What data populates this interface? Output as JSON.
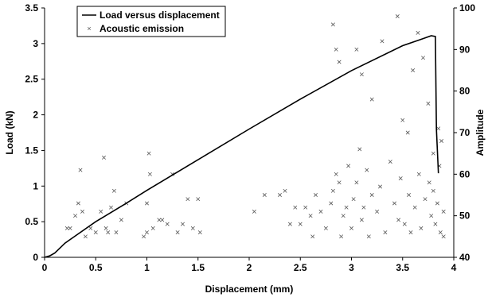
{
  "chart_data": {
    "type": "line+scatter",
    "xlabel": "Displacement (mm)",
    "ylabel_left": "Load (kN)",
    "ylabel_right": "Amplitude",
    "xlim": [
      0,
      4
    ],
    "ylim_left": [
      0,
      3.5
    ],
    "ylim_right": [
      40,
      100
    ],
    "x_ticks": [
      "0",
      "0.5",
      "1",
      "1.5",
      "2",
      "2.5",
      "3",
      "3.5",
      "4"
    ],
    "y_ticks_left": [
      "0",
      "0.5",
      "1",
      "1.5",
      "2",
      "2.5",
      "3",
      "3.5"
    ],
    "y_ticks_right": [
      "40",
      "50",
      "60",
      "70",
      "80",
      "90",
      "100"
    ],
    "grid": false,
    "legend_position": "top-left",
    "colors": {
      "line": "#000000",
      "markers": "#555555"
    },
    "series": [
      {
        "name": "Load versus displacement",
        "kind": "line",
        "axis": "left",
        "x": [
          0,
          0.05,
          0.1,
          0.15,
          0.2,
          0.3,
          0.5,
          0.8,
          1.0,
          1.5,
          2.0,
          2.5,
          3.0,
          3.5,
          3.7,
          3.78,
          3.82,
          3.83,
          3.85
        ],
        "y": [
          0,
          0.02,
          0.06,
          0.13,
          0.2,
          0.3,
          0.5,
          0.76,
          0.94,
          1.37,
          1.8,
          2.22,
          2.62,
          2.97,
          3.07,
          3.11,
          3.1,
          1.8,
          1.18
        ]
      },
      {
        "name": "Acoustic emission",
        "kind": "scatter",
        "axis": "right",
        "marker": "x",
        "points": [
          [
            0.22,
            47
          ],
          [
            0.25,
            47
          ],
          [
            0.3,
            50
          ],
          [
            0.33,
            53
          ],
          [
            0.35,
            61
          ],
          [
            0.37,
            51
          ],
          [
            0.4,
            45
          ],
          [
            0.45,
            47
          ],
          [
            0.5,
            46
          ],
          [
            0.55,
            51
          ],
          [
            0.58,
            64
          ],
          [
            0.6,
            47
          ],
          [
            0.62,
            46
          ],
          [
            0.65,
            52
          ],
          [
            0.68,
            56
          ],
          [
            0.7,
            46
          ],
          [
            0.75,
            49
          ],
          [
            0.8,
            53
          ],
          [
            0.97,
            45
          ],
          [
            1.0,
            46
          ],
          [
            1.0,
            53
          ],
          [
            1.02,
            65
          ],
          [
            1.03,
            60
          ],
          [
            1.06,
            47
          ],
          [
            1.12,
            49
          ],
          [
            1.15,
            49
          ],
          [
            1.2,
            48
          ],
          [
            1.25,
            60
          ],
          [
            1.3,
            46
          ],
          [
            1.35,
            48
          ],
          [
            1.4,
            54
          ],
          [
            1.45,
            47
          ],
          [
            1.5,
            54
          ],
          [
            1.52,
            46
          ],
          [
            2.05,
            51
          ],
          [
            2.15,
            55
          ],
          [
            2.3,
            55
          ],
          [
            2.35,
            56
          ],
          [
            2.4,
            48
          ],
          [
            2.45,
            52
          ],
          [
            2.5,
            48
          ],
          [
            2.55,
            52
          ],
          [
            2.6,
            50
          ],
          [
            2.62,
            45
          ],
          [
            2.65,
            55
          ],
          [
            2.7,
            51
          ],
          [
            2.75,
            47
          ],
          [
            2.8,
            53
          ],
          [
            2.82,
            56
          ],
          [
            2.85,
            60
          ],
          [
            2.88,
            58
          ],
          [
            2.9,
            45
          ],
          [
            2.92,
            50
          ],
          [
            2.95,
            52
          ],
          [
            2.97,
            62
          ],
          [
            3.0,
            47
          ],
          [
            3.02,
            54
          ],
          [
            3.05,
            58
          ],
          [
            3.08,
            66
          ],
          [
            3.1,
            49
          ],
          [
            3.12,
            52
          ],
          [
            3.15,
            61
          ],
          [
            3.17,
            45
          ],
          [
            3.2,
            55
          ],
          [
            2.82,
            96
          ],
          [
            2.85,
            90
          ],
          [
            2.88,
            87
          ],
          [
            3.05,
            90
          ],
          [
            3.1,
            84
          ],
          [
            3.2,
            78
          ],
          [
            3.3,
            92
          ],
          [
            3.45,
            98
          ],
          [
            3.5,
            73
          ],
          [
            3.55,
            70
          ],
          [
            3.6,
            85
          ],
          [
            3.65,
            94
          ],
          [
            3.7,
            88
          ],
          [
            3.75,
            77
          ],
          [
            3.8,
            65
          ],
          [
            3.85,
            71
          ],
          [
            3.9,
            45
          ],
          [
            3.25,
            51
          ],
          [
            3.28,
            57
          ],
          [
            3.33,
            46
          ],
          [
            3.38,
            63
          ],
          [
            3.42,
            53
          ],
          [
            3.46,
            49
          ],
          [
            3.48,
            59
          ],
          [
            3.52,
            48
          ],
          [
            3.56,
            55
          ],
          [
            3.58,
            46
          ],
          [
            3.62,
            52
          ],
          [
            3.66,
            60
          ],
          [
            3.68,
            47
          ],
          [
            3.72,
            54
          ],
          [
            3.76,
            58
          ],
          [
            3.78,
            50
          ],
          [
            3.8,
            56
          ],
          [
            3.82,
            48
          ],
          [
            3.84,
            53
          ],
          [
            3.86,
            62
          ],
          [
            3.87,
            46
          ],
          [
            3.88,
            68
          ],
          [
            3.9,
            51
          ]
        ]
      }
    ]
  },
  "legend": {
    "items": [
      {
        "label": "Load versus displacement",
        "kind": "line"
      },
      {
        "label": "Acoustic emission",
        "kind": "marker"
      }
    ]
  }
}
